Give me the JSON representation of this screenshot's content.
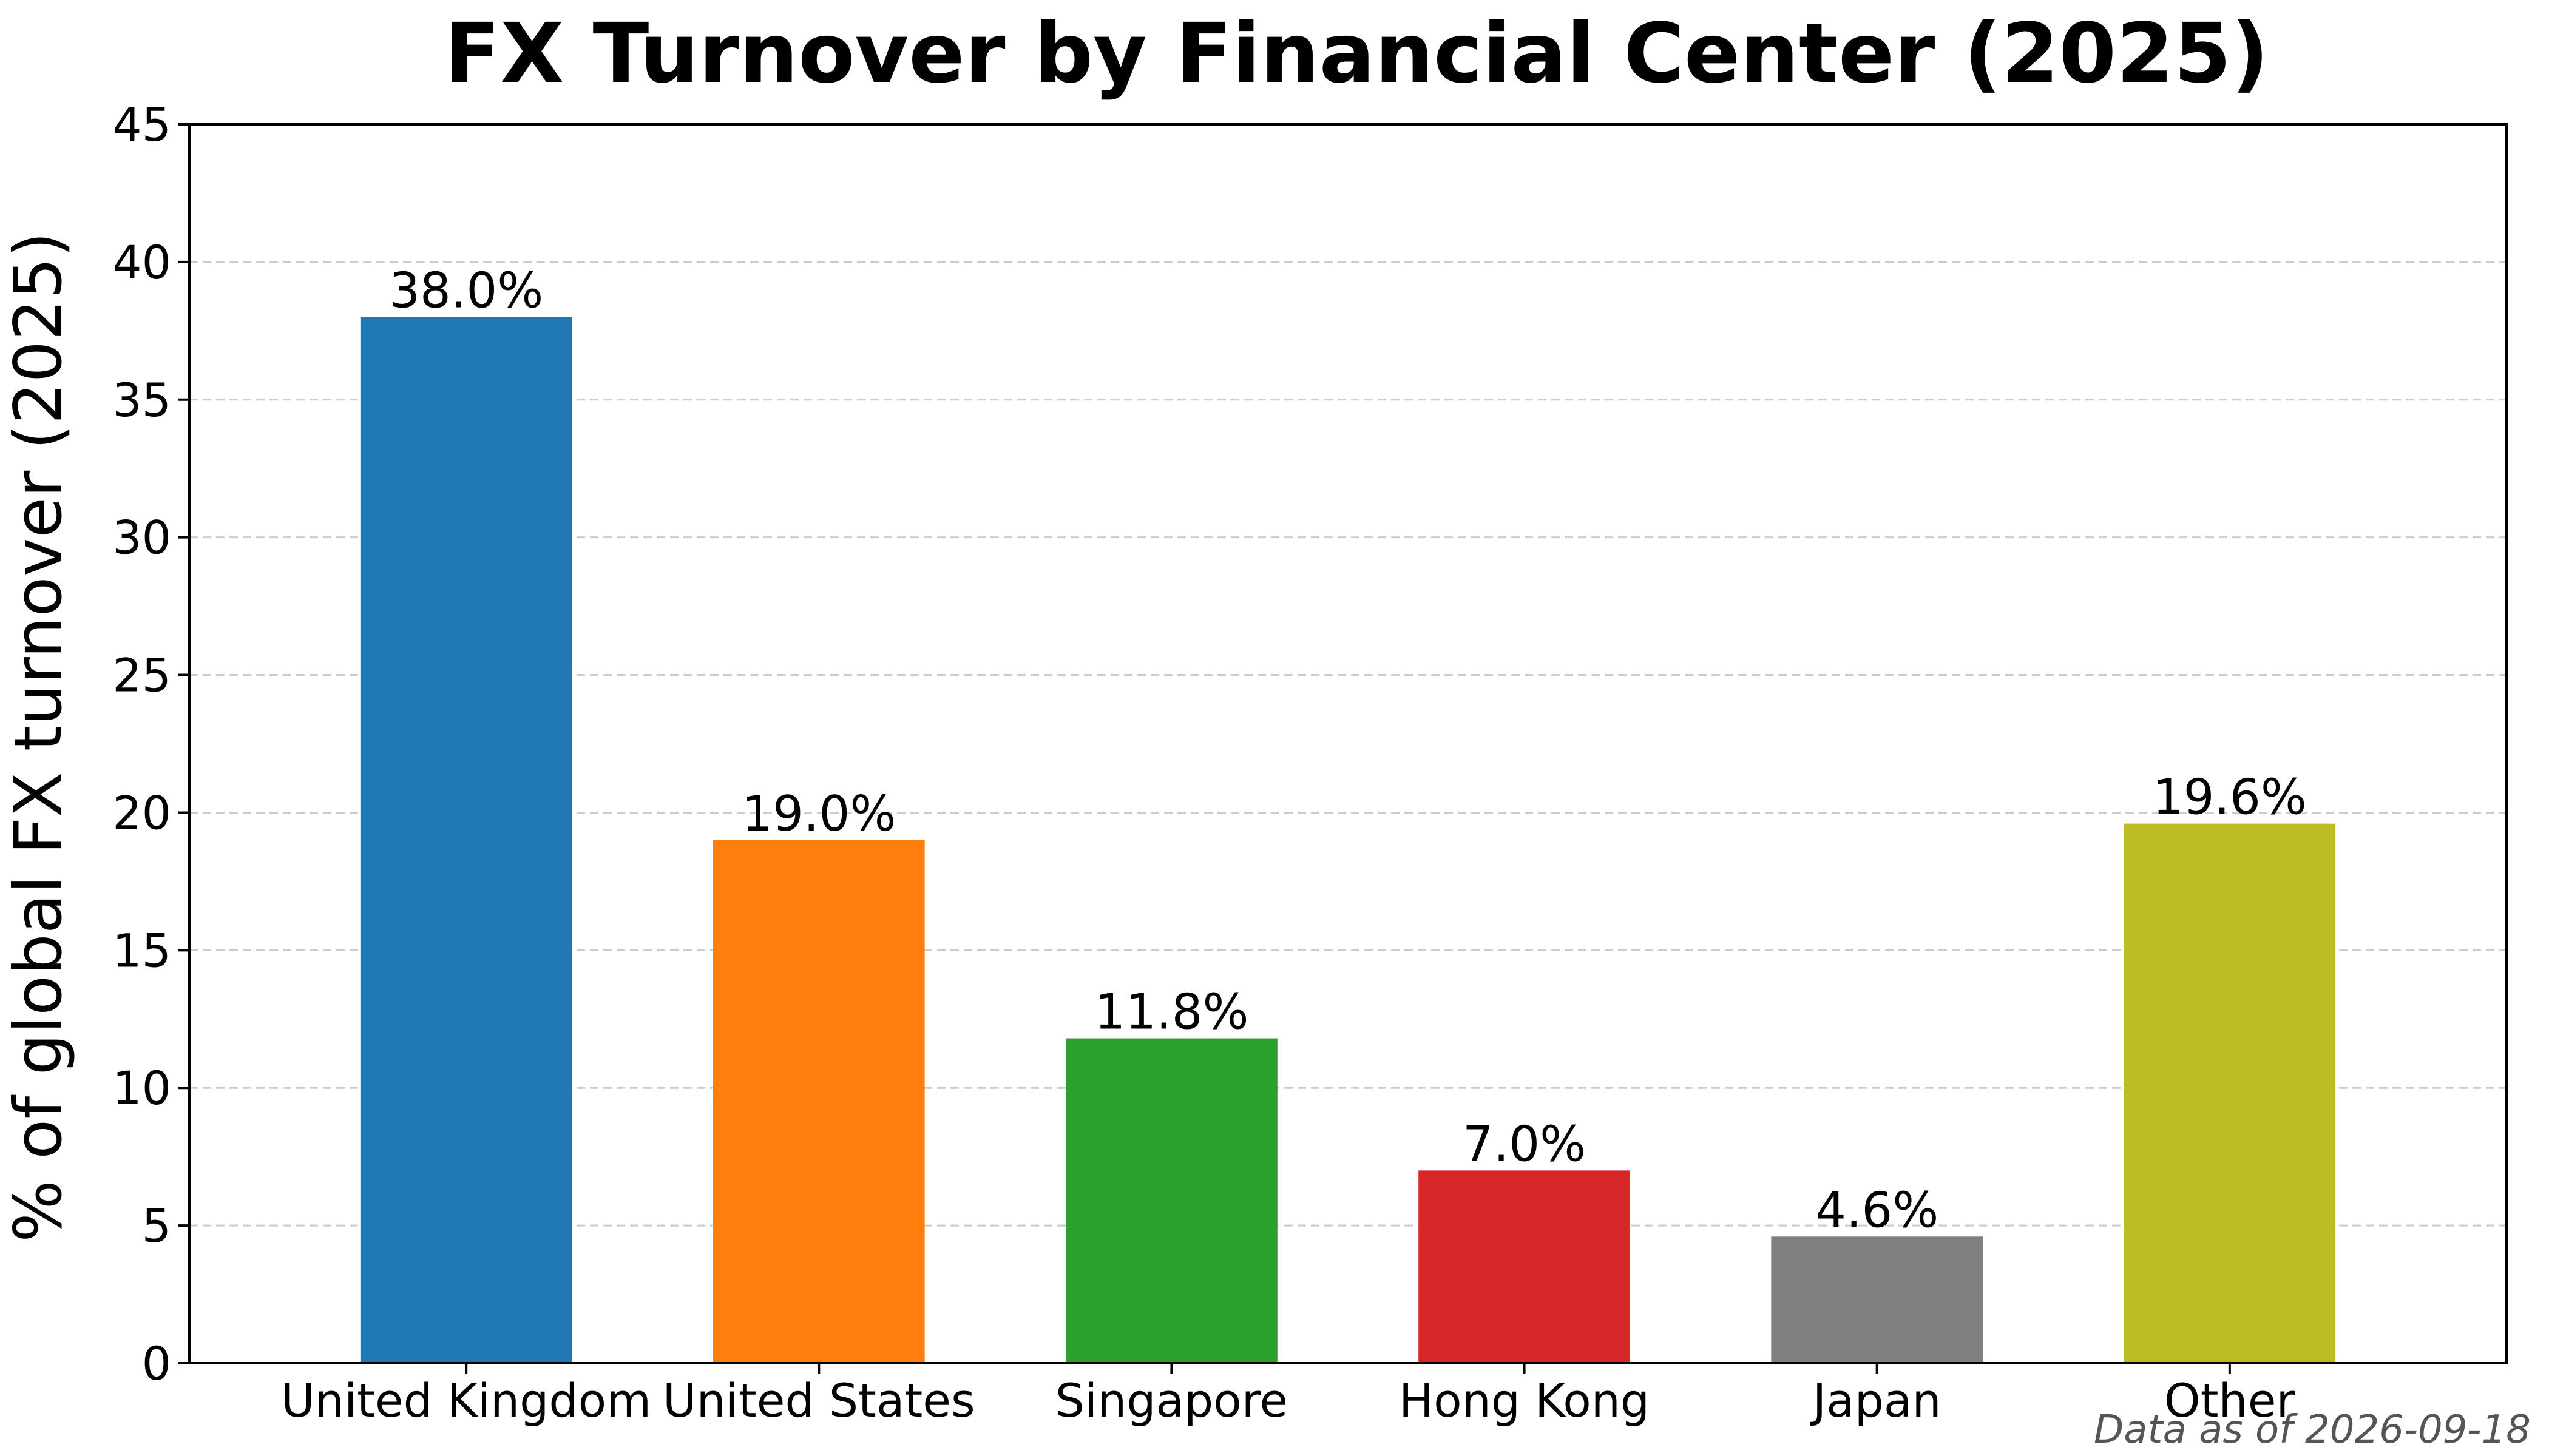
{
  "chart_data": {
    "type": "bar",
    "title": "FX Turnover by Financial Center (2025)",
    "xlabel": "",
    "ylabel": "% of global FX turnover (2025)",
    "categories": [
      "United Kingdom",
      "United States",
      "Singapore",
      "Hong Kong",
      "Japan",
      "Other"
    ],
    "values": [
      38.0,
      19.0,
      11.8,
      7.0,
      4.6,
      19.6
    ],
    "data_labels": [
      "38.0%",
      "19.0%",
      "11.8%",
      "7.0%",
      "4.6%",
      "19.6%"
    ],
    "colors": [
      "#1f77b4",
      "#ff7f0e",
      "#2ca02c",
      "#d62728",
      "#7f7f7f",
      "#bcbd22"
    ],
    "ylim": [
      0,
      45
    ],
    "yticks": [
      0,
      5,
      10,
      15,
      20,
      25,
      30,
      35,
      40,
      45
    ],
    "grid": "y-dashed",
    "legend": "none"
  },
  "footnote": "Data as of 2026-09-18"
}
